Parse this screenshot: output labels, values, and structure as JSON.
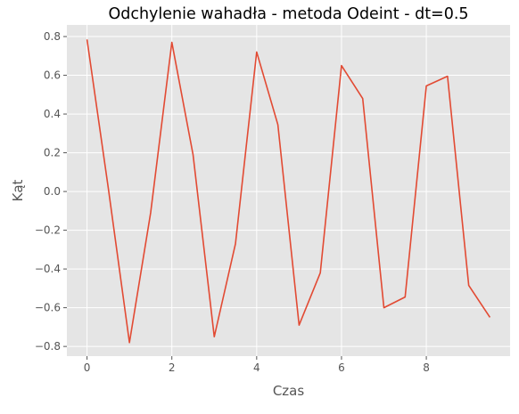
{
  "chart_data": {
    "type": "line",
    "title": "Odchylenie wahadła - metoda Odeint - dt=0.5",
    "xlabel": "Czas",
    "ylabel": "Kąt",
    "xlim": [
      -0.475,
      9.975
    ],
    "ylim": [
      -0.85,
      0.86
    ],
    "xticks": [
      0,
      2,
      4,
      6,
      8
    ],
    "yticks": [
      -0.8,
      -0.6,
      -0.4,
      -0.2,
      0.0,
      0.2,
      0.4,
      0.6,
      0.8
    ],
    "grid": true,
    "series": [
      {
        "color": "#E24A33",
        "x": [
          0,
          0.5,
          1.0,
          1.5,
          2.0,
          2.5,
          3.0,
          3.5,
          4.0,
          4.5,
          5.0,
          5.5,
          6.0,
          6.5,
          7.0,
          7.5,
          8.0,
          8.5,
          9.0,
          9.5
        ],
        "y": [
          0.785,
          0.02,
          -0.78,
          -0.11,
          0.77,
          0.19,
          -0.75,
          -0.27,
          0.72,
          0.345,
          -0.69,
          -0.42,
          0.65,
          0.48,
          -0.6,
          -0.545,
          0.545,
          0.595,
          -0.485,
          -0.65
        ]
      }
    ]
  },
  "colors": {
    "plot_background": "#E5E5E5",
    "grid": "#FFFFFF",
    "text": "#555555"
  }
}
